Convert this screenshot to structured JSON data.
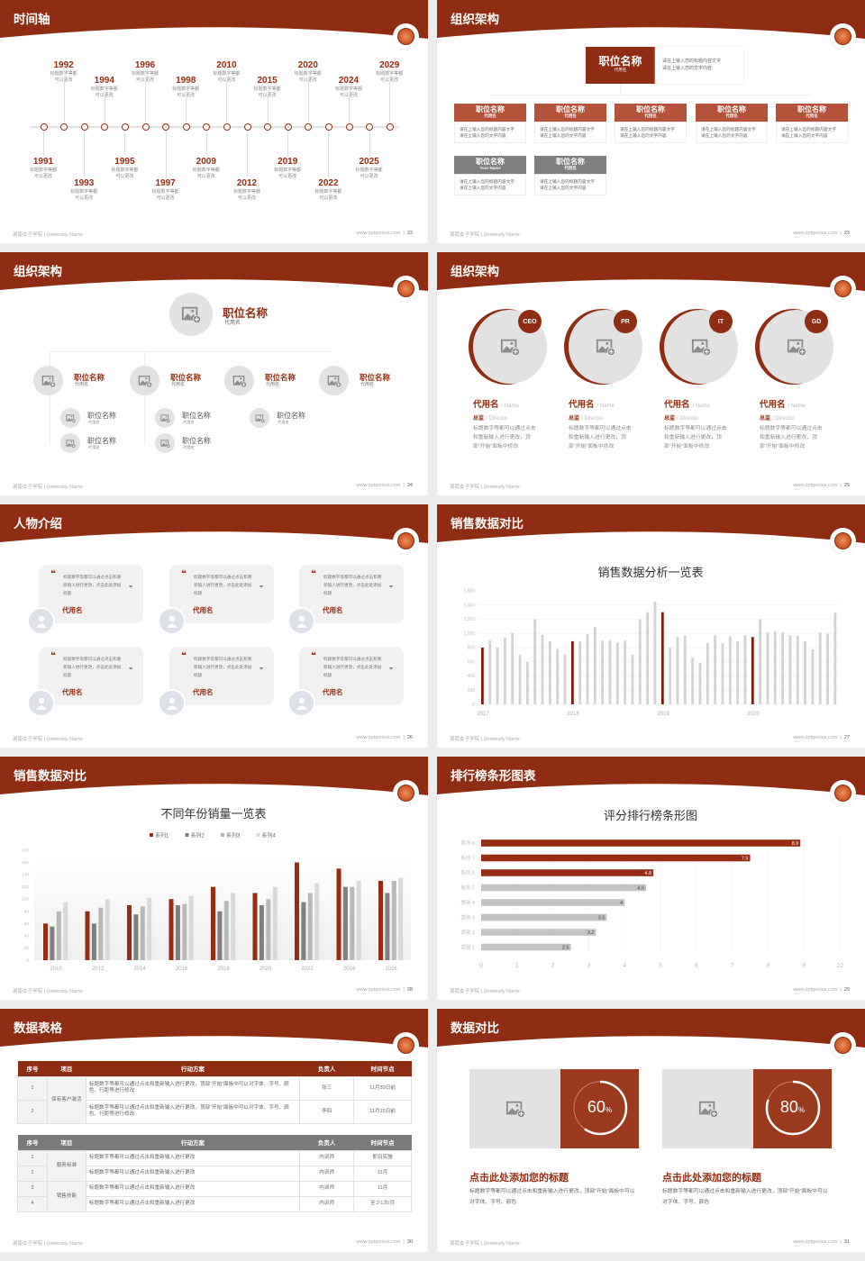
{
  "footer": {
    "left": "湖南女子学院 | University Name",
    "site": "www.pptgenius.com"
  },
  "colors": {
    "brand": "#8f2d13",
    "accent": "#962d12",
    "gray_bar": "#c9c9c9",
    "dark_gray": "#7a7a7a"
  },
  "slides": [
    {
      "title": "时间轴",
      "page": "22",
      "timeline": [
        {
          "year": "1991",
          "l1": "标题数字等都",
          "l2": "可以更改"
        },
        {
          "year": "1992",
          "l1": "标题数字等都",
          "l2": "可以更改"
        },
        {
          "year": "1993",
          "l1": "标题数字等都",
          "l2": "可以更改"
        },
        {
          "year": "1994",
          "l1": "标题数字等都",
          "l2": "可以更改"
        },
        {
          "year": "1995",
          "l1": "标题数字等都",
          "l2": "可以更改"
        },
        {
          "year": "1996",
          "l1": "标题数字等都",
          "l2": "可以更改"
        },
        {
          "year": "1997",
          "l1": "标题数字等都",
          "l2": "可以更改"
        },
        {
          "year": "1998",
          "l1": "标题数字等都",
          "l2": "可以更改"
        },
        {
          "year": "2009",
          "l1": "标题数字等都",
          "l2": "可以更改"
        },
        {
          "year": "2010",
          "l1": "标题数字等都",
          "l2": "可以更改"
        },
        {
          "year": "2012",
          "l1": "标题数字等都",
          "l2": "可以更改"
        },
        {
          "year": "2015",
          "l1": "标题数字等都",
          "l2": "可以更改"
        },
        {
          "year": "2019",
          "l1": "标题数字等都",
          "l2": "可以更改"
        },
        {
          "year": "2020",
          "l1": "标题数字等都",
          "l2": "可以更改"
        },
        {
          "year": "2022",
          "l1": "标题数字等都",
          "l2": "可以更改"
        },
        {
          "year": "2024",
          "l1": "标题数字等都",
          "l2": "可以更改"
        },
        {
          "year": "2025",
          "l1": "标题数字等都",
          "l2": "可以更改"
        },
        {
          "year": "2029",
          "l1": "标题数字等都",
          "l2": "可以更改"
        }
      ]
    },
    {
      "title": "组织架构",
      "page": "23",
      "top": {
        "title": "职位名称",
        "sub": "代用名",
        "d1": "请在上输入您的标题内容文字",
        "d2": "请在上输入您的文字内容"
      },
      "cards": [
        {
          "title": "职位名称",
          "sub": "代用名",
          "d1": "请在上输入您的标题内容文字",
          "d2": "请在上输入您的文字内容",
          "tone": "red"
        },
        {
          "title": "职位名称",
          "sub": "代用名",
          "d1": "请在上输入您的标题内容文字",
          "d2": "请在上输入您的文字内容",
          "tone": "red"
        },
        {
          "title": "职位名称",
          "sub": "代用名",
          "d1": "请在上输入您的标题内容文字",
          "d2": "请在上输入您的文字内容",
          "tone": "red"
        },
        {
          "title": "职位名称",
          "sub": "代用名",
          "d1": "请在上输入您的标题内容文字",
          "d2": "请在上输入您的文字内容",
          "tone": "red"
        },
        {
          "title": "职位名称",
          "sub": "代用名",
          "d1": "请在上输入您的标题内容文字",
          "d2": "请在上输入您的文字内容",
          "tone": "red"
        },
        {
          "title": "职位名称",
          "sub": "Your Name",
          "d1": "请在上输入您的标题内容文字",
          "d2": "请在上输入您的文字内容",
          "tone": "gray"
        },
        {
          "title": "职位名称",
          "sub": "代用名",
          "d1": "请在上输入您的标题内容文字",
          "d2": "请在上输入您的文字内容",
          "tone": "gray"
        }
      ]
    },
    {
      "title": "组织架构",
      "page": "24",
      "top": {
        "title": "职位名称",
        "sub": "代用名"
      },
      "mids": [
        {
          "title": "职位名称",
          "sub": "代用名"
        },
        {
          "title": "职位名称",
          "sub": "代用名"
        },
        {
          "title": "职位名称",
          "sub": "代用名"
        },
        {
          "title": "职位名称",
          "sub": "代用名"
        }
      ],
      "subs": [
        {
          "title": "职位名称",
          "sub": "代用名"
        },
        {
          "title": "职位名称",
          "sub": "代用名"
        },
        {
          "title": "职位名称",
          "sub": "代用名"
        },
        {
          "title": "职位名称",
          "sub": "代用名"
        },
        {
          "title": "职位名称",
          "sub": "代用名"
        }
      ]
    },
    {
      "title": "组织架构",
      "page": "25",
      "people": [
        {
          "badge": "CEO",
          "name": "代用名",
          "name_en": "/ Name",
          "role": "总监",
          "role_en": "/  Director",
          "desc": "标题数字等都可以通过点击和重新输入进行更改，顶部“开始”面板中修改"
        },
        {
          "badge": "PR",
          "name": "代用名",
          "name_en": "/ Name",
          "role": "总监",
          "role_en": "/  Director",
          "desc": "标题数字等都可以通过点击和重新输入进行更改，顶部“开始”面板中修改"
        },
        {
          "badge": "IT",
          "name": "代用名",
          "name_en": "/ Name",
          "role": "总监",
          "role_en": "/  Director",
          "desc": "标题数字等都可以通过点击和重新输入进行更改，顶部“开始”面板中修改"
        },
        {
          "badge": "GD",
          "name": "代用名",
          "name_en": "/ Name",
          "role": "总监",
          "role_en": "/  Director",
          "desc": "标题数字等都可以通过点击和重新输入进行更改，顶部“开始”面板中修改"
        }
      ]
    },
    {
      "title": "人物介绍",
      "page": "26",
      "quotes": [
        {
          "text": "标题数字等都可以通过点击和重新输入进行更改，点击此处添加标题",
          "name": "代用名"
        },
        {
          "text": "标题数字等都可以通过点击和重新输入进行更改，点击此处添加标题",
          "name": "代用名"
        },
        {
          "text": "标题数字等都可以通过点击和重新输入进行更改，点击此处添加标题",
          "name": "代用名"
        },
        {
          "text": "标题数字等都可以通过点击和重新输入进行更改，点击此处添加标题",
          "name": "代用名"
        },
        {
          "text": "标题数字等都可以通过点击和重新输入进行更改，点击此处添加标题",
          "name": "代用名"
        },
        {
          "text": "标题数字等都可以通过点击和重新输入进行更改，点击此处添加标题",
          "name": "代用名"
        }
      ]
    },
    {
      "title": "销售数据对比",
      "page": "27"
    },
    {
      "title": "销售数据对比",
      "page": "28"
    },
    {
      "title": "排行榜条形图表",
      "page": "29"
    },
    {
      "title": "数据表格",
      "page": "30",
      "tables": [
        {
          "header": [
            "序号",
            "项目",
            "行动方案",
            "负责人",
            "时间节点"
          ],
          "tone": "red",
          "groups": [
            {
              "label": "保有客户激活",
              "rows": [
                [
                  "1",
                  "标题数字等都可以通过点击和重新输入进行更改，顶部“开始”面板中可以对字体、字号、颜色、行距等进行修改",
                  "张三",
                  "11月30日前"
                ],
                [
                  "2",
                  "标题数字等都可以通过点击和重新输入进行更改，顶部“开始”面板中可以对字体、字号、颜色、行距等进行修改",
                  "李四",
                  "11月15日前"
                ]
              ]
            }
          ]
        },
        {
          "header": [
            "序号",
            "项目",
            "行动方案",
            "负责人",
            "时间节点"
          ],
          "tone": "gray",
          "groups": [
            {
              "label": "服务标准",
              "rows": [
                [
                  "1",
                  "标题数字等都可以通过点击和重新输入进行更改",
                  "内训师",
                  "即日实施"
                ],
                [
                  "2",
                  "标题数字等都可以通过点击和重新输入进行更改",
                  "内训师",
                  "11月"
                ]
              ]
            },
            {
              "label": "销售技能",
              "rows": [
                [
                  "3",
                  "标题数字等都可以通过点击和重新输入进行更改",
                  "内训师",
                  "11月"
                ],
                [
                  "4",
                  "标题数字等都可以通过点击和重新输入进行更改",
                  "内训师",
                  "至少1次/月"
                ]
              ]
            }
          ]
        }
      ]
    },
    {
      "title": "数据对比",
      "page": "31",
      "items": [
        {
          "percent": 60,
          "value": "60",
          "unit": "%",
          "title": "点击此处添加您的标题",
          "text": "标题数字等都可以通过点击和重新输入进行更改，顶部“开始”面板中可以对字体、字号、颜色"
        },
        {
          "percent": 80,
          "value": "80",
          "unit": "%",
          "title": "点击此处添加您的标题",
          "text": "标题数字等都可以通过点击和重新输入进行更改，顶部“开始”面板中可以对字体、字号、颜色"
        }
      ]
    }
  ],
  "chart_data": [
    {
      "type": "bar",
      "title": "销售数据分析一览表",
      "ylim": [
        0,
        1600
      ],
      "yticks": [
        "0",
        "200",
        "400",
        "600",
        "800",
        "1,000",
        "1,200",
        "1,400",
        "1,600"
      ],
      "x_labels": [
        "2017",
        "2018",
        "2019",
        "2020"
      ],
      "values": [
        800,
        900,
        800,
        940,
        1010,
        700,
        600,
        1200,
        980,
        890,
        780,
        700,
        890,
        890,
        990,
        1090,
        900,
        900,
        870,
        900,
        700,
        1200,
        1300,
        1450,
        1300,
        800,
        950,
        970,
        660,
        585,
        865,
        975,
        860,
        955,
        890,
        975,
        950,
        1200,
        1015,
        1030,
        1015,
        975,
        965,
        890,
        775,
        1015,
        995,
        1295
      ],
      "highlighted_indices": [
        0,
        12,
        24,
        36
      ],
      "grid": true
    },
    {
      "type": "bar",
      "title": "不同年份销量一览表",
      "ylim": [
        0,
        180
      ],
      "yticks": [
        "0",
        "20",
        "40",
        "60",
        "80",
        "100",
        "120",
        "140",
        "160",
        "180"
      ],
      "categories": [
        "2010",
        "2012",
        "2014",
        "2016",
        "2018",
        "2020",
        "2022",
        "2024",
        "2026"
      ],
      "legend": "top",
      "series": [
        {
          "name": "系列1",
          "color": "#962d12",
          "values": [
            60,
            80,
            90,
            100,
            120,
            110,
            160,
            150,
            130
          ]
        },
        {
          "name": "系列2",
          "color": "#7f7f7f",
          "values": [
            55,
            60,
            75,
            90,
            80,
            90,
            95,
            120,
            110
          ]
        },
        {
          "name": "系列3",
          "color": "#b8b8b8",
          "values": [
            80,
            86,
            88,
            92,
            97,
            100,
            110,
            120,
            130
          ]
        },
        {
          "name": "系列4",
          "color": "#d9d9d9",
          "values": [
            95,
            100,
            102,
            105,
            110,
            120,
            126,
            130,
            135
          ]
        }
      ]
    },
    {
      "type": "bar",
      "orientation": "horizontal",
      "title": "评分排行榜条形图",
      "xlim": [
        0,
        10
      ],
      "xticks": [
        "0",
        "1",
        "2",
        "3",
        "4",
        "5",
        "6",
        "7",
        "8",
        "9",
        "10"
      ],
      "categories": [
        "系列 8",
        "系列 7",
        "系列 6",
        "系列 5",
        "类别 4",
        "类别 3",
        "类别 2",
        "类别 1"
      ],
      "values": [
        8.9,
        7.5,
        4.8,
        4.6,
        4,
        3.5,
        3.2,
        2.5
      ],
      "labels": [
        "8.9",
        "7.5",
        "4.8",
        "4.6",
        "4",
        "3.5",
        "3.2",
        "2.5"
      ],
      "highlighted_indices": [
        0,
        1,
        2
      ],
      "grid": true
    }
  ]
}
